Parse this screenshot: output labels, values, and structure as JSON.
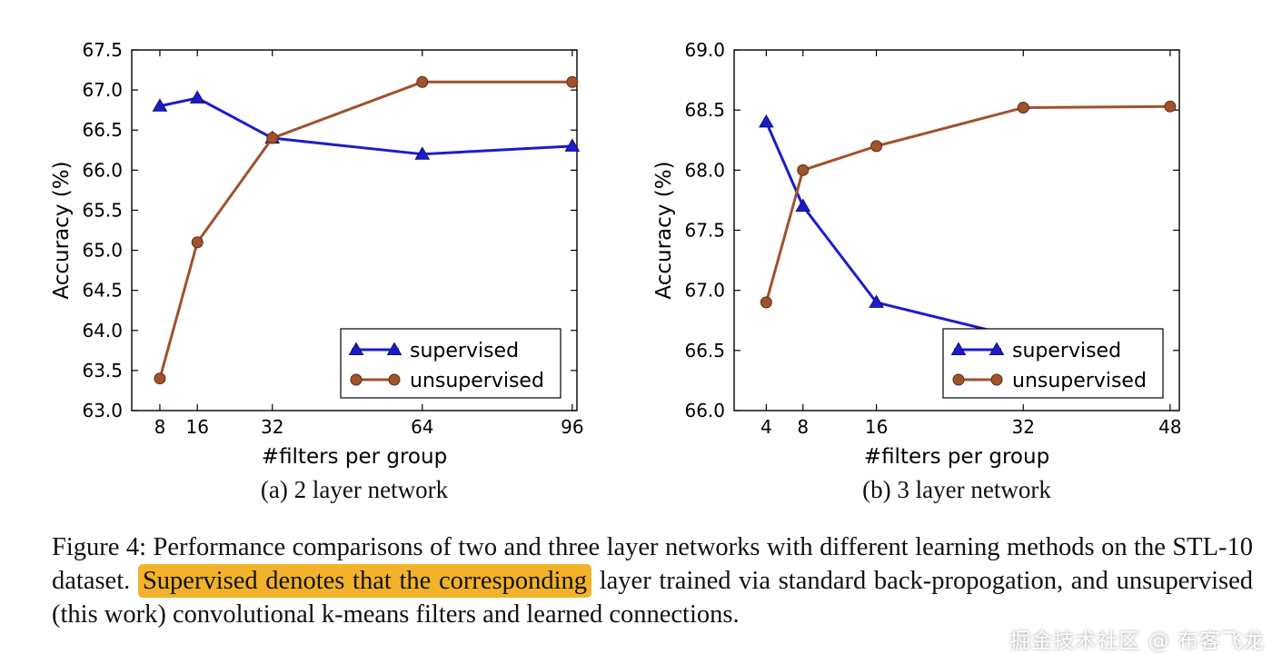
{
  "chart_data": [
    {
      "type": "line",
      "title": "",
      "subcaption": "(a) 2 layer network",
      "xlabel": "#filters per group",
      "ylabel": "Accuracy (%)",
      "xlim": [
        2,
        97
      ],
      "ylim": [
        63.0,
        67.5
      ],
      "x_tick_values": [
        8,
        16,
        32,
        64,
        96
      ],
      "x_tick_labels": [
        "8",
        "16",
        "32",
        "64",
        "96"
      ],
      "y_tick_values": [
        63.0,
        63.5,
        64.0,
        64.5,
        65.0,
        65.5,
        66.0,
        66.5,
        67.0,
        67.5
      ],
      "y_tick_labels": [
        "63.0",
        "63.5",
        "64.0",
        "64.5",
        "65.0",
        "65.5",
        "66.0",
        "66.5",
        "67.0",
        "67.5"
      ],
      "grid": false,
      "legend_position": "lower-right",
      "series": [
        {
          "name": "supervised",
          "color": "#1c1ccd",
          "edge_color": "#10106e",
          "marker": "triangle-up",
          "x": [
            8,
            16,
            32,
            64,
            96
          ],
          "y": [
            66.8,
            66.9,
            66.4,
            66.2,
            66.3
          ]
        },
        {
          "name": "unsupervised",
          "color": "#a0522d",
          "edge_color": "#5c2e0e",
          "marker": "circle",
          "x": [
            8,
            16,
            32,
            64,
            96
          ],
          "y": [
            63.4,
            65.1,
            66.4,
            67.1,
            67.1
          ]
        }
      ]
    },
    {
      "type": "line",
      "title": "",
      "subcaption": "(b) 3 layer network",
      "xlabel": "#filters per group",
      "ylabel": "Accuracy (%)",
      "xlim": [
        0.5,
        49
      ],
      "ylim": [
        66.0,
        69.0
      ],
      "x_tick_values": [
        4,
        8,
        16,
        32,
        48
      ],
      "x_tick_labels": [
        "4",
        "8",
        "16",
        "32",
        "48"
      ],
      "y_tick_values": [
        66.0,
        66.5,
        67.0,
        67.5,
        68.0,
        68.5,
        69.0
      ],
      "y_tick_labels": [
        "66.0",
        "66.5",
        "67.0",
        "67.5",
        "68.0",
        "68.5",
        "69.0"
      ],
      "grid": false,
      "legend_position": "lower-right",
      "series": [
        {
          "name": "supervised",
          "color": "#1c1ccd",
          "edge_color": "#10106e",
          "marker": "triangle-up",
          "x": [
            4,
            8,
            16,
            32
          ],
          "y": [
            68.4,
            67.7,
            66.9,
            66.6
          ]
        },
        {
          "name": "unsupervised",
          "color": "#a0522d",
          "edge_color": "#5c2e0e",
          "marker": "circle",
          "x": [
            4,
            8,
            16,
            32,
            48
          ],
          "y": [
            66.9,
            68.0,
            68.2,
            68.52,
            68.53
          ]
        }
      ]
    }
  ],
  "caption": {
    "seg1": "Figure 4: Performance comparisons of two and three layer networks with different learning methods on the STL-10 dataset. ",
    "seg2_highlight": "Supervised denotes that the corresponding",
    "seg3": " layer trained via standard back-propogation, and unsupervised (this work) convolutional k-means filters and learned connections."
  },
  "watermark": {
    "text": "掘金技术社区 @ 布客飞龙"
  },
  "colors": {
    "supervised_blue": "#1c1ccd",
    "unsupervised_brown": "#a0522d",
    "highlight_yellow": "#f2b32a",
    "axis_black": "#000000",
    "background": "#ffffff"
  }
}
